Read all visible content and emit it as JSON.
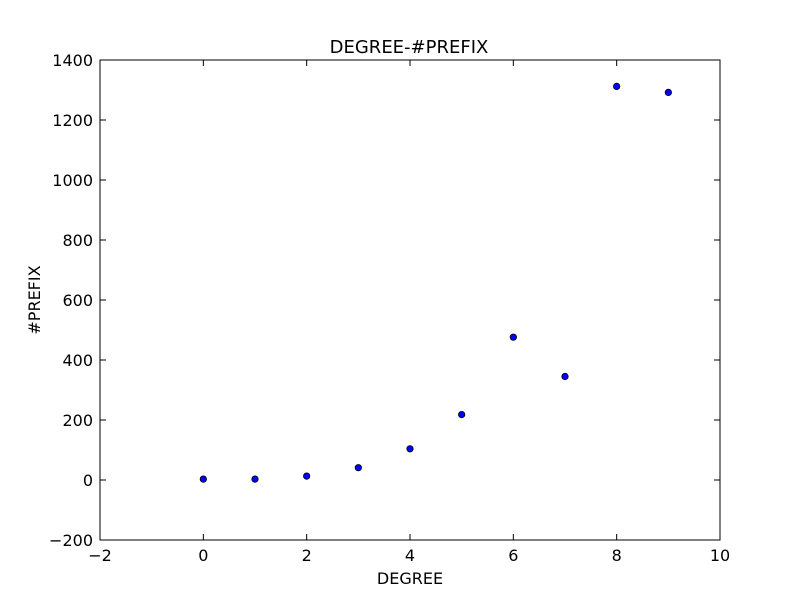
{
  "chart_data": {
    "type": "scatter",
    "title": "DEGREE-#PREFIX",
    "xlabel": "DEGREE",
    "ylabel": "#PREFIX",
    "xlim": [
      -2,
      10
    ],
    "ylim": [
      -200,
      1400
    ],
    "xticks": [
      -2,
      0,
      2,
      4,
      6,
      8,
      10
    ],
    "yticks": [
      -200,
      0,
      200,
      400,
      600,
      800,
      1000,
      1200,
      1400
    ],
    "xtick_labels": [
      "−2",
      "0",
      "2",
      "4",
      "6",
      "8",
      "10"
    ],
    "ytick_labels": [
      "−200",
      "0",
      "200",
      "400",
      "600",
      "800",
      "1000",
      "1200",
      "1400"
    ],
    "grid": false,
    "marker_color": "#0000ff",
    "points": [
      {
        "x": 0,
        "y": 3
      },
      {
        "x": 1,
        "y": 3
      },
      {
        "x": 2,
        "y": 13
      },
      {
        "x": 3,
        "y": 41
      },
      {
        "x": 4,
        "y": 104
      },
      {
        "x": 5,
        "y": 218
      },
      {
        "x": 6,
        "y": 476
      },
      {
        "x": 7,
        "y": 345
      },
      {
        "x": 8,
        "y": 1312
      },
      {
        "x": 9,
        "y": 1292
      }
    ]
  }
}
